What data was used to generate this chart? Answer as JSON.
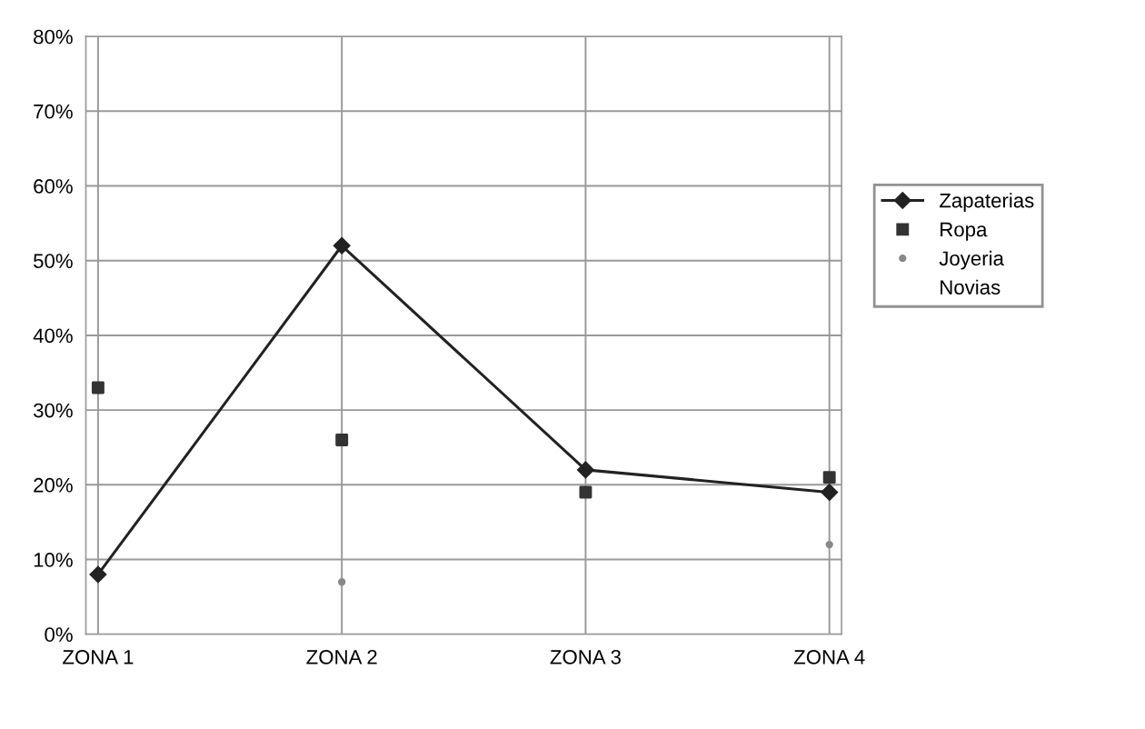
{
  "chart_data": {
    "type": "line",
    "categories": [
      "ZONA 1",
      "ZONA 2",
      "ZONA 3",
      "ZONA 4"
    ],
    "series": [
      {
        "name": "Zapaterias",
        "marker": "diamond",
        "color": "#222222",
        "values": [
          8,
          52,
          22,
          19
        ]
      },
      {
        "name": "Ropa",
        "type": "scatter",
        "marker": "square",
        "color": "#333333",
        "values": [
          33,
          26,
          19,
          21
        ]
      },
      {
        "name": "Joyeria",
        "type": "scatter",
        "marker": "circle",
        "color": "#888888",
        "values": [
          null,
          7,
          null,
          12
        ]
      },
      {
        "name": "Novias",
        "type": "scatter",
        "marker": "none",
        "values": [
          null,
          null,
          null,
          null
        ]
      }
    ],
    "ylim": [
      0,
      80
    ],
    "yticks": [
      {
        "value": 0,
        "label": "0%"
      },
      {
        "value": 10,
        "label": "10%"
      },
      {
        "value": 20,
        "label": "20%"
      },
      {
        "value": 30,
        "label": "30%"
      },
      {
        "value": 40,
        "label": "40%"
      },
      {
        "value": 50,
        "label": "50%"
      },
      {
        "value": 60,
        "label": "60%"
      },
      {
        "value": 70,
        "label": "70%"
      },
      {
        "value": 80,
        "label": "80%"
      }
    ],
    "grid": true,
    "legend": "right"
  }
}
